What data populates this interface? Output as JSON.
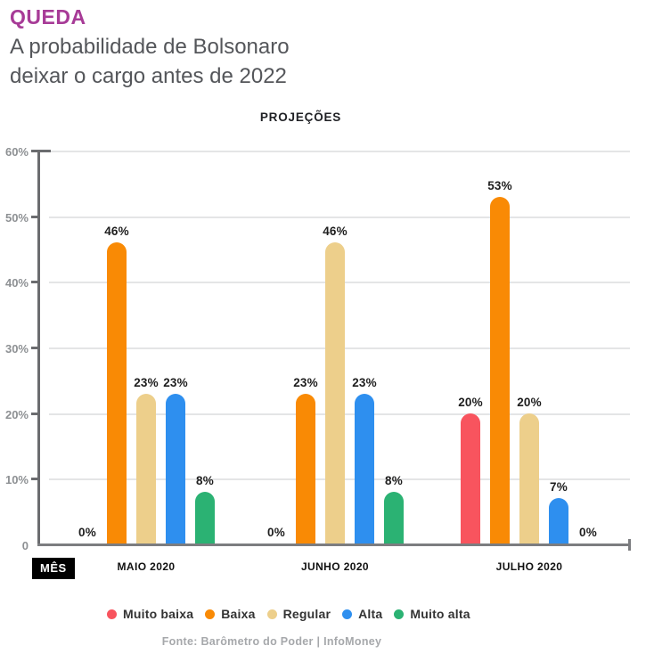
{
  "header": {
    "kicker": "QUEDA",
    "subtitle_line1": "A probabilidade de Bolsonaro",
    "subtitle_line2": "deixar o cargo antes de 2022"
  },
  "chart_data": {
    "type": "bar",
    "title": "PROJEÇÕES",
    "categories": [
      "MAIO 2020",
      "JUNHO 2020",
      "JULHO 2020"
    ],
    "series": [
      {
        "name": "Muito baixa",
        "color": "#F8545E",
        "values": [
          0,
          0,
          20
        ]
      },
      {
        "name": "Baixa",
        "color": "#F98A05",
        "values": [
          46,
          23,
          53
        ]
      },
      {
        "name": "Regular",
        "color": "#EDCF8B",
        "values": [
          23,
          46,
          20
        ]
      },
      {
        "name": "Alta",
        "color": "#2E8FEF",
        "values": [
          23,
          23,
          7
        ]
      },
      {
        "name": "Muito alta",
        "color": "#2BB273",
        "values": [
          8,
          8,
          0
        ]
      }
    ],
    "ylim": [
      0,
      60
    ],
    "ytick_values": [
      60,
      50,
      40,
      30,
      20,
      10,
      0
    ],
    "yticks": [
      "60%",
      "50%",
      "40%",
      "30%",
      "20%",
      "10%",
      "0"
    ],
    "value_suffix": "%",
    "grid": true,
    "legend_position": "bottom",
    "xlabel_badge": "MÊS"
  },
  "footer": {
    "source": "Fonte: Barômetro do Poder | InfoMoney"
  }
}
